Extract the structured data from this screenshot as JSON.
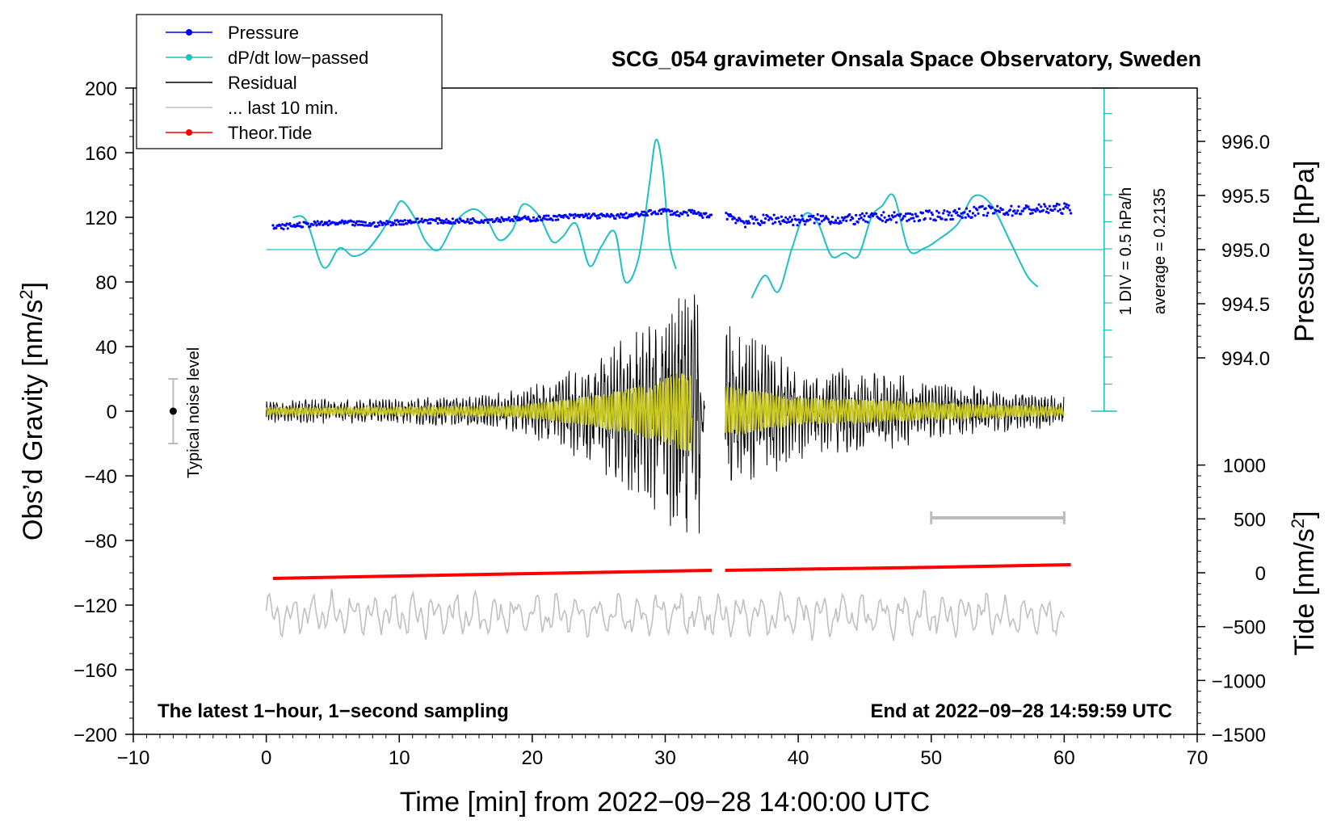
{
  "chart_data": {
    "type": "line",
    "title": "SCG_054 gravimeter Onsala Space Observatory, Sweden",
    "xlabel": "Time [min] from 2022−09−28 14:00:00 UTC",
    "ylabel_left": "Obs’d Gravity [nm/s²]",
    "ylabel_left_main": "Obs’d Gravity [nm/s",
    "ylabel_left_sup": "2",
    "ylabel_left_end": "]",
    "ylabel_right_pressure": "Pressure [hPa]",
    "ylabel_right_tide_main": "Tide [nm/s",
    "ylabel_right_tide_sup": "2",
    "ylabel_right_tide_end": "]",
    "xlim": [
      -10,
      70
    ],
    "ylim": [
      -200,
      200
    ],
    "x_ticks": [
      "−10",
      "0",
      "10",
      "20",
      "30",
      "40",
      "50",
      "60",
      "70"
    ],
    "x_tick_values": [
      -10,
      0,
      10,
      20,
      30,
      40,
      50,
      60,
      70
    ],
    "y_ticks": [
      "200",
      "160",
      "120",
      "80",
      "40",
      "0",
      "−40",
      "−80",
      "−120",
      "−160",
      "−200"
    ],
    "y_tick_values": [
      200,
      160,
      120,
      80,
      40,
      0,
      -40,
      -80,
      -120,
      -160,
      -200
    ],
    "pressure_axis": {
      "ticks": [
        "996.0",
        "995.5",
        "995.0",
        "994.5",
        "994.0"
      ],
      "values": [
        996.0,
        995.5,
        995.0,
        994.5,
        994.0
      ],
      "gravity_equiv": [
        167,
        133.5,
        100,
        66.5,
        33
      ]
    },
    "tide_axis": {
      "ticks": [
        "1000",
        "500",
        "0",
        "−500",
        "−1000",
        "−1500"
      ],
      "values": [
        1000,
        500,
        0,
        -500,
        -1000,
        -1500
      ]
    },
    "legend": [
      {
        "label": "Pressure",
        "color": "#0000ff",
        "marker": true
      },
      {
        "label": "dP/dt low−passed",
        "color": "#20c0c0",
        "marker": true
      },
      {
        "label": "Residual",
        "color": "#000000",
        "marker": false
      },
      {
        "label": "... last 10 min.",
        "color": "#c0c0c0",
        "marker": false
      },
      {
        "label": "Theor.Tide",
        "color": "#ff0000",
        "marker": true
      }
    ],
    "annotations": {
      "bottom_left": "The latest 1−hour, 1−second sampling",
      "bottom_right": "End at 2022−09−28 14:59:59 UTC",
      "noise_label": "Typical noise level",
      "dpdt_scale": "1 DIV = 0.5 hPa/h",
      "dpdt_average": "average = 0.2135"
    },
    "noise_bar": {
      "x": -7,
      "ymin": -20,
      "ymax": 20,
      "center": 0
    },
    "tide_scale_bar": {
      "x_start": 50,
      "x_end": 60,
      "y": -66
    },
    "dpdt_zero_line": 100,
    "series": [
      {
        "name": "Pressure",
        "color": "#0000ff",
        "x": [
          0.5,
          2,
          4,
          6,
          8,
          10,
          12,
          14,
          16,
          18,
          20,
          22,
          24,
          26,
          28,
          29,
          30,
          31,
          32,
          33,
          34.5,
          36,
          38,
          40,
          42,
          44,
          46,
          48,
          50,
          52,
          54,
          56,
          58,
          60.5
        ],
        "y": [
          113.5,
          115,
          116,
          116.5,
          115.5,
          117,
          118,
          117.5,
          118,
          119,
          119,
          120,
          121,
          120.5,
          121.5,
          123,
          124,
          122,
          123,
          121,
          122,
          117,
          119,
          118,
          119,
          118.5,
          120,
          120,
          121,
          122,
          124,
          124,
          125,
          125.5
        ]
      },
      {
        "name": "dP/dt low-passed",
        "color": "#20c0c0",
        "segments": [
          {
            "x": [
              2,
              3,
              4.3,
              5.5,
              6.5,
              7.5,
              8.5,
              9.5,
              10.2,
              11.2,
              12,
              13,
              14.2,
              15.5,
              16.5,
              17.5,
              18.5,
              19.3,
              20.5,
              21.5,
              22.3,
              23.3,
              24.3,
              25.2,
              26.2,
              27,
              28,
              28.8,
              29.3,
              29.8,
              30.3,
              30.8
            ],
            "y": [
              120,
              118,
              89,
              101,
              96,
              99,
              109,
              122,
              130,
              119,
              105,
              100,
              117,
              125,
              120,
              106,
              112,
              128,
              121,
              105,
              108,
              116,
              90,
              102,
              111,
              80,
              95,
              140,
              168,
              150,
              105,
              88
            ]
          },
          {
            "x": [
              36.5,
              37.5,
              38.5,
              39.5,
              40.5,
              41.5,
              42.5,
              43.5,
              44.5,
              45.5,
              46.3,
              47.2,
              48.3,
              49.5,
              50.5,
              52,
              53.2,
              54.5,
              56,
              57.2,
              58
            ],
            "y": [
              70,
              84,
              74,
              100,
              122,
              116,
              96,
              98,
              96,
              120,
              127,
              133,
              100,
              101,
              106,
              116,
              133,
              128,
              104,
              84,
              77
            ]
          }
        ]
      },
      {
        "name": "Residual",
        "color": "#000000",
        "envelope": {
          "x": [
            0,
            10,
            18,
            21,
            24,
            27,
            29,
            31,
            32.5,
            33,
            34.5,
            36,
            40,
            45,
            50,
            55,
            60
          ],
          "amplitude": [
            8,
            8,
            12,
            20,
            32,
            48,
            62,
            85,
            90,
            0,
            55,
            50,
            30,
            26,
            20,
            14,
            10
          ]
        }
      },
      {
        "name": "... last 10 min.",
        "color": "#c0c0c0",
        "center": -126,
        "amplitude": 12
      },
      {
        "name": "Theor.Tide",
        "color": "#ff0000",
        "x": [
          0.5,
          10,
          20,
          30,
          33.5,
          34.5,
          40,
          50,
          60.5
        ],
        "y": [
          -103.5,
          -102,
          -100.5,
          -99,
          -98.5,
          -98.5,
          -97.8,
          -96.6,
          -95
        ]
      }
    ]
  }
}
